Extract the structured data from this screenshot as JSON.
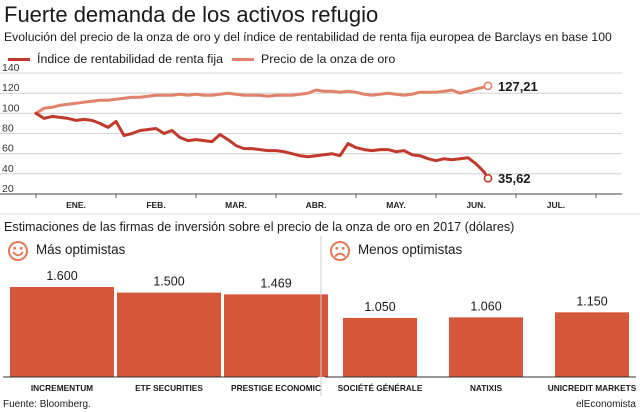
{
  "title": "Fuerte demanda de los activos refugio",
  "subtitle": "Evolución del precio de la onza de oro y del índice de rentabilidad de renta fija europea de Barclays en base 100",
  "legend": [
    {
      "label": "Índice de rentabilidad de renta fija",
      "color": "#c0392b"
    },
    {
      "label": "Precio de la onza de oro",
      "color": "#e3826a"
    }
  ],
  "section2_title": "Estimaciones de las firmas de inversión sobre el precio de la onza de oro en 2017 (dólares)",
  "footer": {
    "source": "Fuente: Bloomberg.",
    "brand": "elEconomista"
  },
  "colors": {
    "bond": "#c0392b",
    "gold": "#e3826a",
    "bar": "#d4573b",
    "grid": "#c8c8c8",
    "icon": "#e07a55"
  },
  "chart_data": [
    {
      "type": "line",
      "title": "Evolución del precio de la onza de oro y del índice de rentabilidad de renta fija europea de Barclays en base 100",
      "categories": [
        "ENE.",
        "FEB.",
        "MAR.",
        "ABR.",
        "MAY.",
        "JUN.",
        "JUL."
      ],
      "ylim": [
        20,
        140
      ],
      "yticks": [
        20,
        40,
        60,
        80,
        100,
        120,
        140
      ],
      "grid": true,
      "legend_position": "top-left",
      "series": [
        {
          "name": "Índice de rentabilidad de renta fija",
          "color": "#c0392b",
          "end_label": "35,62",
          "x": [
            0.0,
            0.1,
            0.2,
            0.3,
            0.4,
            0.5,
            0.6,
            0.7,
            0.8,
            0.9,
            1.0,
            1.1,
            1.2,
            1.3,
            1.4,
            1.5,
            1.6,
            1.7,
            1.8,
            1.9,
            2.0,
            2.1,
            2.2,
            2.3,
            2.4,
            2.5,
            2.6,
            2.7,
            2.8,
            2.9,
            3.0,
            3.1,
            3.2,
            3.3,
            3.4,
            3.5,
            3.6,
            3.7,
            3.8,
            3.9,
            4.0,
            4.1,
            4.2,
            4.3,
            4.4,
            4.5,
            4.6,
            4.7,
            4.8,
            4.9,
            5.0,
            5.1,
            5.2,
            5.3,
            5.4,
            5.5,
            5.6,
            5.65
          ],
          "values": [
            100,
            95,
            97,
            96,
            95,
            93,
            94,
            93,
            90,
            86,
            92,
            78,
            80,
            83,
            84,
            85,
            80,
            83,
            76,
            73,
            74,
            73,
            72,
            79,
            74,
            68,
            65,
            65,
            64,
            63,
            63,
            62,
            60,
            58,
            57,
            58,
            59,
            60,
            58,
            70,
            66,
            64,
            63,
            64,
            64,
            62,
            63,
            59,
            58,
            55,
            53,
            55,
            54,
            55,
            56,
            50,
            42,
            35.62
          ]
        },
        {
          "name": "Precio de la onza de oro",
          "color": "#e3826a",
          "end_label": "127,21",
          "x": [
            0.0,
            0.1,
            0.2,
            0.3,
            0.4,
            0.5,
            0.6,
            0.7,
            0.8,
            0.9,
            1.0,
            1.1,
            1.2,
            1.3,
            1.4,
            1.5,
            1.6,
            1.7,
            1.8,
            1.9,
            2.0,
            2.1,
            2.2,
            2.3,
            2.4,
            2.5,
            2.6,
            2.7,
            2.8,
            2.9,
            3.0,
            3.1,
            3.2,
            3.3,
            3.4,
            3.5,
            3.6,
            3.7,
            3.8,
            3.9,
            4.0,
            4.1,
            4.2,
            4.3,
            4.4,
            4.5,
            4.6,
            4.7,
            4.8,
            4.9,
            5.0,
            5.1,
            5.2,
            5.3,
            5.4,
            5.5,
            5.6,
            5.65
          ],
          "values": [
            100,
            105,
            106,
            108,
            109,
            110,
            111,
            112,
            113,
            113,
            114,
            115,
            116,
            116,
            117,
            118,
            118,
            118,
            119,
            118,
            119,
            118,
            118,
            119,
            120,
            119,
            118,
            118,
            118,
            117,
            118,
            118,
            118,
            119,
            120,
            123,
            122,
            122,
            121,
            122,
            121,
            119,
            118,
            119,
            120,
            119,
            118,
            119,
            121,
            121,
            121,
            122,
            123,
            120,
            122,
            124,
            126,
            127.21
          ]
        }
      ]
    },
    {
      "type": "bar",
      "title": "Más optimistas",
      "categories": [
        "INCREMENTUM",
        "ETF SECURITIES",
        "PRESTIGE ECONOMIC"
      ],
      "values": [
        1600,
        1500,
        1469
      ],
      "labels": [
        "1.600",
        "1.500",
        "1.469"
      ]
    },
    {
      "type": "bar",
      "title": "Menos optimistas",
      "categories": [
        "SOCIÉTÉ GÉNÉRALE",
        "NATIXIS",
        "UNICREDIT MARKETS"
      ],
      "values": [
        1050,
        1060,
        1150
      ],
      "labels": [
        "1.050",
        "1.060",
        "1.150"
      ]
    }
  ]
}
